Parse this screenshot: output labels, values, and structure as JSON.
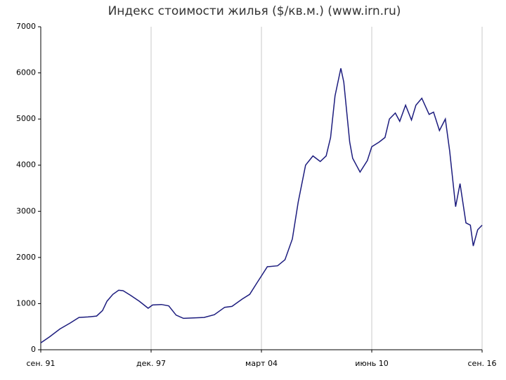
{
  "chart_data": {
    "type": "line",
    "title": "Индекс стоимости жилья ($/кв.м.) (www.irn.ru)",
    "x": [
      "1991-09",
      "1992-03",
      "1992-10",
      "1993-05",
      "1993-11",
      "1994-05",
      "1994-11",
      "1995-03",
      "1995-06",
      "1995-10",
      "1996-02",
      "1996-05",
      "1996-10",
      "1997-04",
      "1997-10",
      "1998-01",
      "1998-07",
      "1998-12",
      "1999-05",
      "1999-10",
      "2000-05",
      "2000-12",
      "2001-07",
      "2002-02",
      "2002-07",
      "2003-02",
      "2003-07",
      "2003-12",
      "2004-03",
      "2004-07",
      "2005-02",
      "2005-07",
      "2005-12",
      "2006-04",
      "2006-09",
      "2007-02",
      "2007-07",
      "2007-11",
      "2008-02",
      "2008-05",
      "2008-09",
      "2008-11",
      "2009-03",
      "2009-05",
      "2009-10",
      "2010-03",
      "2010-06",
      "2010-11",
      "2011-03",
      "2011-06",
      "2011-10",
      "2012-01",
      "2012-05",
      "2012-09",
      "2012-12",
      "2013-04",
      "2013-09",
      "2013-12",
      "2014-04",
      "2014-08",
      "2014-11",
      "2015-03",
      "2015-06",
      "2015-10",
      "2016-01",
      "2016-03",
      "2016-06",
      "2016-09"
    ],
    "values": [
      150,
      280,
      450,
      580,
      700,
      710,
      730,
      850,
      1050,
      1200,
      1290,
      1280,
      1180,
      1050,
      900,
      970,
      980,
      950,
      750,
      680,
      690,
      700,
      760,
      920,
      940,
      1100,
      1200,
      1450,
      1600,
      1800,
      1820,
      1950,
      2400,
      3200,
      4000,
      4200,
      4080,
      4200,
      4600,
      5500,
      6100,
      5800,
      4500,
      4150,
      3850,
      4100,
      4400,
      4500,
      4600,
      5000,
      5130,
      4950,
      5300,
      4980,
      5300,
      5450,
      5100,
      5150,
      4750,
      5000,
      4300,
      3100,
      3600,
      2750,
      2700,
      2250,
      2600,
      2700
    ],
    "color": "#1c1c7e",
    "xlim": [
      "1991-09",
      "2016-09"
    ],
    "xticks": [
      {
        "value": "1991-09",
        "label": "сен. 91"
      },
      {
        "value": "1997-12",
        "label": "дек. 97"
      },
      {
        "value": "2004-03",
        "label": "март 04"
      },
      {
        "value": "2010-06",
        "label": "июнь 10"
      },
      {
        "value": "2016-09",
        "label": "сен. 16"
      }
    ],
    "ylim": [
      0,
      7000
    ],
    "yticks": [
      0,
      1000,
      2000,
      3000,
      4000,
      5000,
      6000,
      7000
    ],
    "grid": "x"
  }
}
